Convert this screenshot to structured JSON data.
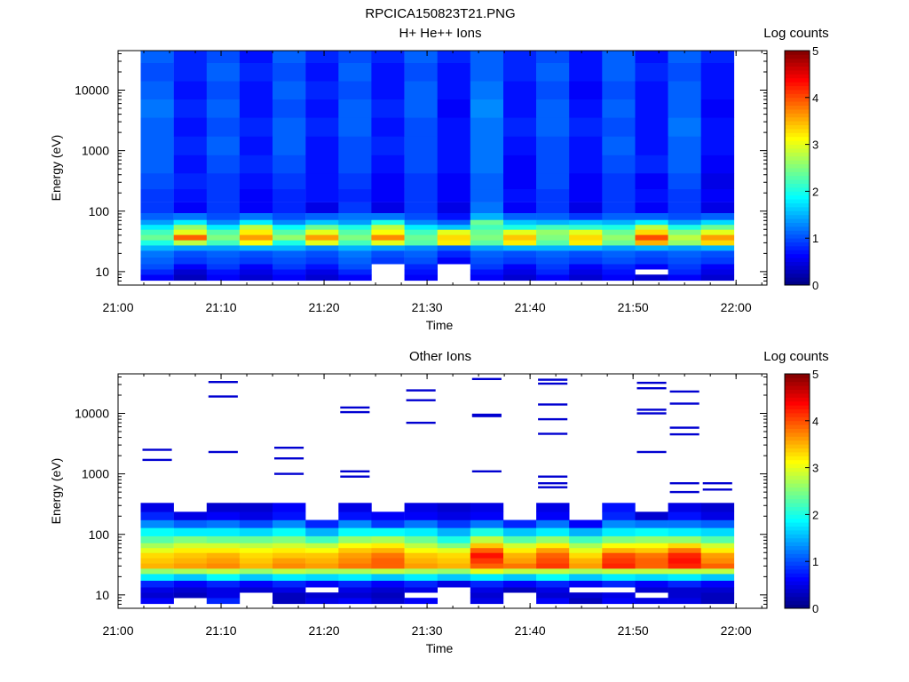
{
  "figure": {
    "title": "RPCICA150823T21.PNG"
  },
  "chart_data": [
    {
      "type": "heatmap",
      "title": "H+ He++ Ions",
      "xlabel": "Time",
      "ylabel": "Energy (eV)",
      "yscale": "log",
      "ylim": [
        6,
        45000
      ],
      "xlim": [
        "21:00",
        "22:03"
      ],
      "x_ticks": [
        "21:00",
        "21:10",
        "21:20",
        "21:30",
        "21:40",
        "21:50",
        "22:00"
      ],
      "y_ticks": [
        "10",
        "100",
        "1000",
        "10000"
      ],
      "colorbar": {
        "label": "Log counts",
        "range": [
          0,
          5
        ],
        "ticks": [
          "0",
          "1",
          "2",
          "3",
          "4",
          "5"
        ],
        "colormap": "jet"
      },
      "time_columns": [
        "21:02",
        "21:06",
        "21:09",
        "21:12",
        "21:16",
        "21:19",
        "21:22",
        "21:26",
        "21:29",
        "21:32",
        "21:35",
        "21:39",
        "21:42",
        "21:45",
        "21:49",
        "21:52",
        "21:55",
        "21:58"
      ],
      "energy_bands_eV": [
        8,
        10,
        12,
        15,
        20,
        25,
        30,
        37,
        45,
        55,
        65,
        80,
        110,
        180,
        300,
        600,
        1200,
        2500,
        5000,
        10000,
        20000,
        40000
      ],
      "counts_log": [
        [
          0.6,
          0.3,
          0.6,
          0.4,
          0.6,
          0.4,
          0.6,
          null,
          0.6,
          null,
          0.6,
          0.4,
          0.6,
          0.4,
          0.6,
          0.4,
          0.6,
          0.4
        ],
        [
          0.8,
          0.4,
          0.7,
          0.5,
          0.7,
          0.5,
          0.8,
          null,
          0.7,
          null,
          0.7,
          0.5,
          0.8,
          0.5,
          0.7,
          null,
          0.8,
          0.5
        ],
        [
          1.0,
          0.6,
          0.9,
          0.6,
          0.9,
          0.7,
          1.0,
          null,
          0.8,
          null,
          0.9,
          0.6,
          0.9,
          0.6,
          0.8,
          0.6,
          0.9,
          0.6
        ],
        [
          1.1,
          0.9,
          1.0,
          0.9,
          1.0,
          0.9,
          1.1,
          0.9,
          1.0,
          0.6,
          1.0,
          0.9,
          1.0,
          0.9,
          1.0,
          0.9,
          1.0,
          0.9
        ],
        [
          1.2,
          1.0,
          1.1,
          1.0,
          1.1,
          1.0,
          1.2,
          1.0,
          1.1,
          0.8,
          1.1,
          1.0,
          1.1,
          1.0,
          1.1,
          1.0,
          1.1,
          1.0
        ],
        [
          1.5,
          1.4,
          1.4,
          1.5,
          1.5,
          1.3,
          1.5,
          1.4,
          1.3,
          1.1,
          1.4,
          1.5,
          1.5,
          1.5,
          1.4,
          1.5,
          1.4,
          1.5
        ],
        [
          2.0,
          2.8,
          2.2,
          3.1,
          2.0,
          3.0,
          2.2,
          3.0,
          2.3,
          3.2,
          2.3,
          3.2,
          2.3,
          3.2,
          2.4,
          3.5,
          2.6,
          3.3
        ],
        [
          2.4,
          3.9,
          2.5,
          3.6,
          2.6,
          3.6,
          2.5,
          3.7,
          2.4,
          3.3,
          2.5,
          3.4,
          2.5,
          3.3,
          2.6,
          4.0,
          2.8,
          3.6
        ],
        [
          2.2,
          3.0,
          2.3,
          3.2,
          2.3,
          3.0,
          2.3,
          3.1,
          2.2,
          3.0,
          2.4,
          3.0,
          2.6,
          3.0,
          2.4,
          3.3,
          2.5,
          3.0
        ],
        [
          1.8,
          2.6,
          1.8,
          2.8,
          1.9,
          2.4,
          2.0,
          2.8,
          1.8,
          1.6,
          2.2,
          2.0,
          2.2,
          2.1,
          2.0,
          2.8,
          2.0,
          2.4
        ],
        [
          1.4,
          1.8,
          1.3,
          1.8,
          1.3,
          1.6,
          1.4,
          2.0,
          1.3,
          1.1,
          2.4,
          1.6,
          1.5,
          1.6,
          1.5,
          1.8,
          1.4,
          1.7
        ],
        [
          1.1,
          1.2,
          1.0,
          1.2,
          1.0,
          1.1,
          1.2,
          1.2,
          1.0,
          0.7,
          1.5,
          1.1,
          1.1,
          0.9,
          1.1,
          1.1,
          1.0,
          1.1
        ],
        [
          0.9,
          0.6,
          0.9,
          0.6,
          0.8,
          0.5,
          0.9,
          0.5,
          0.9,
          0.5,
          1.2,
          0.6,
          0.9,
          0.5,
          0.9,
          0.6,
          0.9,
          0.5
        ],
        [
          0.9,
          0.7,
          0.9,
          0.6,
          0.8,
          0.7,
          0.8,
          0.6,
          0.9,
          0.6,
          1.1,
          0.7,
          0.9,
          0.6,
          0.9,
          0.7,
          0.9,
          0.6
        ],
        [
          1.0,
          0.8,
          0.9,
          0.7,
          0.9,
          0.7,
          0.9,
          0.6,
          0.9,
          0.6,
          1.1,
          0.6,
          1.0,
          0.6,
          0.9,
          0.6,
          1.0,
          0.5
        ],
        [
          1.1,
          0.7,
          1.0,
          0.8,
          1.0,
          0.7,
          1.0,
          0.7,
          1.0,
          0.7,
          1.2,
          0.6,
          1.0,
          0.7,
          1.0,
          0.8,
          1.1,
          0.6
        ],
        [
          1.1,
          0.8,
          1.1,
          0.7,
          1.1,
          0.7,
          1.0,
          0.8,
          1.0,
          0.7,
          1.2,
          0.7,
          1.0,
          0.7,
          1.1,
          0.7,
          1.1,
          0.7
        ],
        [
          1.1,
          0.7,
          1.0,
          0.8,
          1.1,
          0.8,
          1.1,
          0.7,
          1.0,
          0.7,
          1.2,
          0.8,
          1.1,
          0.8,
          1.0,
          0.7,
          1.2,
          0.7
        ],
        [
          1.2,
          0.8,
          1.1,
          0.7,
          1.0,
          0.7,
          1.1,
          0.8,
          1.1,
          0.6,
          1.3,
          0.7,
          1.1,
          0.7,
          1.1,
          0.7,
          1.1,
          0.6
        ],
        [
          1.1,
          0.7,
          1.0,
          0.7,
          1.1,
          0.8,
          1.0,
          0.7,
          1.1,
          0.7,
          1.2,
          0.7,
          1.0,
          0.6,
          1.0,
          0.7,
          1.1,
          0.7
        ],
        [
          1.0,
          0.8,
          1.1,
          0.8,
          1.0,
          0.7,
          1.1,
          0.7,
          1.0,
          0.7,
          1.1,
          0.8,
          1.1,
          0.7,
          1.1,
          0.8,
          1.0,
          0.7
        ],
        [
          1.1,
          0.8,
          1.0,
          0.7,
          1.1,
          0.8,
          1.0,
          0.8,
          1.1,
          0.8,
          1.1,
          0.8,
          1.0,
          0.7,
          1.1,
          0.7,
          1.1,
          0.8
        ]
      ]
    },
    {
      "type": "heatmap",
      "title": "Other Ions",
      "xlabel": "Time",
      "ylabel": "Energy (eV)",
      "yscale": "log",
      "ylim": [
        6,
        45000
      ],
      "xlim": [
        "21:00",
        "22:03"
      ],
      "x_ticks": [
        "21:00",
        "21:10",
        "21:20",
        "21:30",
        "21:40",
        "21:50",
        "22:00"
      ],
      "y_ticks": [
        "10",
        "100",
        "1000",
        "10000"
      ],
      "colorbar": {
        "label": "Log counts",
        "range": [
          0,
          5
        ],
        "ticks": [
          "0",
          "1",
          "2",
          "3",
          "4",
          "5"
        ],
        "colormap": "jet"
      },
      "time_columns": [
        "21:02",
        "21:06",
        "21:09",
        "21:12",
        "21:16",
        "21:19",
        "21:22",
        "21:26",
        "21:29",
        "21:32",
        "21:35",
        "21:39",
        "21:42",
        "21:45",
        "21:49",
        "21:52",
        "21:55",
        "21:58"
      ],
      "energy_bands_eV": [
        8,
        10,
        12,
        15,
        20,
        25,
        30,
        37,
        45,
        55,
        65,
        80,
        110,
        150,
        200,
        280
      ],
      "counts_log": [
        [
          0.6,
          null,
          0.8,
          null,
          0.3,
          0.5,
          0.6,
          0.4,
          0.6,
          null,
          0.5,
          null,
          0.6,
          0.3,
          0.6,
          0.5,
          0.5,
          0.3
        ],
        [
          0.4,
          0.3,
          0.5,
          null,
          0.3,
          0.4,
          0.4,
          0.3,
          null,
          null,
          0.4,
          null,
          0.4,
          0.4,
          0.5,
          null,
          0.4,
          0.3
        ],
        [
          0.5,
          0.4,
          0.5,
          0.4,
          0.5,
          null,
          0.5,
          0.4,
          0.5,
          null,
          0.5,
          0.3,
          0.5,
          null,
          null,
          0.4,
          0.4,
          0.4
        ],
        [
          0.8,
          0.6,
          0.8,
          0.6,
          0.8,
          0.6,
          0.8,
          0.6,
          0.8,
          0.5,
          0.8,
          0.6,
          0.8,
          0.6,
          0.8,
          0.6,
          0.8,
          0.6
        ],
        [
          1.8,
          1.6,
          1.9,
          1.6,
          1.8,
          1.7,
          1.8,
          1.6,
          1.8,
          1.6,
          1.8,
          1.6,
          1.9,
          1.6,
          1.8,
          1.7,
          1.8,
          1.6
        ],
        [
          2.6,
          2.7,
          2.8,
          2.6,
          2.8,
          2.7,
          2.7,
          2.8,
          2.7,
          2.6,
          3.0,
          2.8,
          2.8,
          2.7,
          2.8,
          2.8,
          2.8,
          2.8
        ],
        [
          3.5,
          3.6,
          3.7,
          3.5,
          3.7,
          3.6,
          3.8,
          3.9,
          3.6,
          3.5,
          3.9,
          3.8,
          4.1,
          3.6,
          4.2,
          3.9,
          4.2,
          3.9
        ],
        [
          3.4,
          3.5,
          3.6,
          3.4,
          3.6,
          3.5,
          3.7,
          3.9,
          3.5,
          3.4,
          4.1,
          3.6,
          4.0,
          3.5,
          4.1,
          3.9,
          4.3,
          3.7
        ],
        [
          3.3,
          3.4,
          3.5,
          3.3,
          3.4,
          3.4,
          3.6,
          3.8,
          3.4,
          3.3,
          4.3,
          3.5,
          3.9,
          3.3,
          4.0,
          3.8,
          4.2,
          3.6
        ],
        [
          3.0,
          3.2,
          3.2,
          3.1,
          3.2,
          3.1,
          3.4,
          3.5,
          3.1,
          3.0,
          3.9,
          3.2,
          3.6,
          3.0,
          3.5,
          3.4,
          3.8,
          3.2
        ],
        [
          2.7,
          2.9,
          2.9,
          2.8,
          2.9,
          2.8,
          3.1,
          3.2,
          2.8,
          2.5,
          3.4,
          2.9,
          3.2,
          2.7,
          3.1,
          3.1,
          3.3,
          2.9
        ],
        [
          2.3,
          2.5,
          2.4,
          2.4,
          2.5,
          2.2,
          2.6,
          2.7,
          2.4,
          2.0,
          2.8,
          2.3,
          2.6,
          2.2,
          2.5,
          2.6,
          2.6,
          2.3
        ],
        [
          1.9,
          1.8,
          1.8,
          1.7,
          1.9,
          1.5,
          1.9,
          1.9,
          1.8,
          1.5,
          2.0,
          1.6,
          1.8,
          1.5,
          1.8,
          1.9,
          1.8,
          1.7
        ],
        [
          1.3,
          1.1,
          1.2,
          1.0,
          1.3,
          0.8,
          1.3,
          0.9,
          1.2,
          0.9,
          1.2,
          0.8,
          1.2,
          0.6,
          1.3,
          1.2,
          1.2,
          1.1
        ],
        [
          0.8,
          0.5,
          0.6,
          0.5,
          0.7,
          null,
          0.7,
          0.6,
          0.6,
          0.5,
          0.6,
          null,
          0.6,
          null,
          0.8,
          0.4,
          0.7,
          0.5
        ],
        [
          0.5,
          null,
          0.4,
          0.4,
          0.6,
          null,
          0.5,
          null,
          0.5,
          0.4,
          0.5,
          null,
          0.5,
          null,
          0.7,
          null,
          0.5,
          0.4
        ]
      ],
      "sparse_counts": [
        {
          "time": "21:02",
          "energies_eV": [
            1700,
            2500
          ]
        },
        {
          "time": "21:09",
          "energies_eV": [
            2300,
            19000,
            33000
          ]
        },
        {
          "time": "21:16",
          "energies_eV": [
            1000,
            1800,
            2700
          ]
        },
        {
          "time": "21:22",
          "energies_eV": [
            900,
            1100,
            10500,
            12500
          ]
        },
        {
          "time": "21:29",
          "energies_eV": [
            7000,
            16500,
            24000
          ]
        },
        {
          "time": "21:35",
          "energies_eV": [
            1100,
            9000,
            9500,
            37000
          ]
        },
        {
          "time": "21:42",
          "energies_eV": [
            600,
            700,
            900,
            4600,
            8000,
            14000,
            31000,
            36000
          ]
        },
        {
          "time": "21:49",
          "energies_eV": [
            2300,
            10000,
            11500,
            26000,
            32000
          ]
        },
        {
          "time": "21:55",
          "energies_eV": [
            500,
            700,
            4500,
            5800,
            14500,
            23000
          ]
        },
        {
          "time": "21:58",
          "energies_eV": [
            550,
            700
          ]
        }
      ]
    }
  ]
}
